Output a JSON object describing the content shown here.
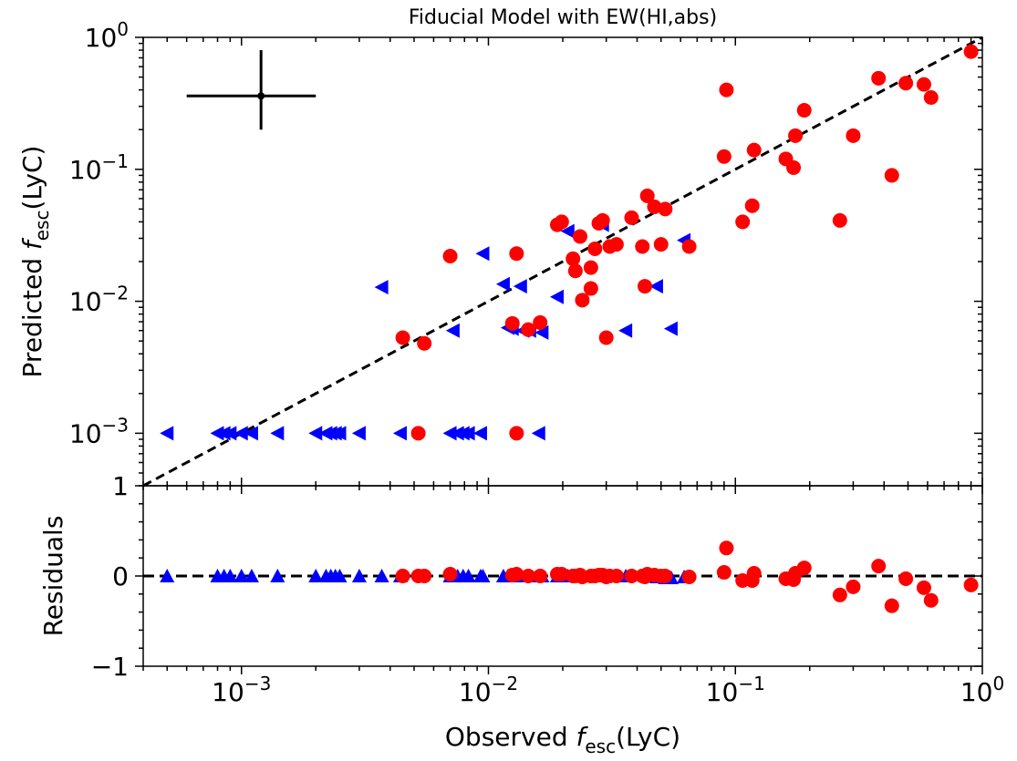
{
  "chart_data": [
    {
      "type": "scatter",
      "title": "Fiducial Model with EW(HI,abs)",
      "ylabel_prefix": "Predicted ",
      "ylabel_italic": "f",
      "ylabel_sub": "esc",
      "ylabel_suffix": "(LyC)",
      "x_scale": "log",
      "y_scale": "log",
      "xlim": [
        0.0004,
        1.0
      ],
      "ylim": [
        0.0004,
        1.0
      ],
      "x_tick_values": [
        0.001,
        0.01,
        0.1,
        1
      ],
      "y_ticks": [
        {
          "value": 0.001,
          "base": "10",
          "exp": "−3"
        },
        {
          "value": 0.01,
          "base": "10",
          "exp": "−2"
        },
        {
          "value": 0.1,
          "base": "10",
          "exp": "−1"
        },
        {
          "value": 1,
          "base": "10",
          "exp": "0"
        }
      ],
      "one_to_one_line": true,
      "typical_error_bar": {
        "x": 0.0012,
        "y": 0.36,
        "x_low": 0.0006,
        "x_high": 0.002,
        "y_low": 0.2,
        "y_high": 0.8
      },
      "detections": {
        "color": "#ff0000",
        "marker": "circle",
        "points": [
          [
            0.0045,
            0.0053
          ],
          [
            0.0055,
            0.0048
          ],
          [
            0.007,
            0.022
          ],
          [
            0.013,
            0.023
          ],
          [
            0.0052,
            0.001
          ],
          [
            0.013,
            0.001
          ],
          [
            0.0125,
            0.0068
          ],
          [
            0.0145,
            0.0061
          ],
          [
            0.0162,
            0.0069
          ],
          [
            0.019,
            0.038
          ],
          [
            0.0198,
            0.04
          ],
          [
            0.022,
            0.021
          ],
          [
            0.0225,
            0.017
          ],
          [
            0.0235,
            0.031
          ],
          [
            0.024,
            0.0102
          ],
          [
            0.026,
            0.018
          ],
          [
            0.026,
            0.0125
          ],
          [
            0.027,
            0.025
          ],
          [
            0.028,
            0.039
          ],
          [
            0.029,
            0.041
          ],
          [
            0.03,
            0.0053
          ],
          [
            0.031,
            0.026
          ],
          [
            0.033,
            0.027
          ],
          [
            0.038,
            0.043
          ],
          [
            0.042,
            0.026
          ],
          [
            0.044,
            0.063
          ],
          [
            0.047,
            0.052
          ],
          [
            0.05,
            0.027
          ],
          [
            0.052,
            0.05
          ],
          [
            0.043,
            0.013
          ],
          [
            0.065,
            0.026
          ],
          [
            0.09,
            0.125
          ],
          [
            0.092,
            0.4
          ],
          [
            0.107,
            0.04
          ],
          [
            0.117,
            0.053
          ],
          [
            0.119,
            0.14
          ],
          [
            0.16,
            0.12
          ],
          [
            0.172,
            0.103
          ],
          [
            0.175,
            0.18
          ],
          [
            0.19,
            0.28
          ],
          [
            0.265,
            0.041
          ],
          [
            0.3,
            0.18
          ],
          [
            0.38,
            0.49
          ],
          [
            0.43,
            0.09
          ],
          [
            0.49,
            0.45
          ],
          [
            0.58,
            0.44
          ],
          [
            0.62,
            0.35
          ],
          [
            0.9,
            0.78
          ]
        ]
      },
      "upper_limits": {
        "color": "#0000ff",
        "marker": "triangle-left",
        "points": [
          [
            0.0005,
            0.001
          ],
          [
            0.0008,
            0.001
          ],
          [
            0.00085,
            0.001
          ],
          [
            0.0009,
            0.001
          ],
          [
            0.001,
            0.001
          ],
          [
            0.0011,
            0.001
          ],
          [
            0.0014,
            0.001
          ],
          [
            0.002,
            0.001
          ],
          [
            0.0022,
            0.001
          ],
          [
            0.0023,
            0.001
          ],
          [
            0.0024,
            0.001
          ],
          [
            0.0025,
            0.001
          ],
          [
            0.003,
            0.001
          ],
          [
            0.0044,
            0.001
          ],
          [
            0.007,
            0.001
          ],
          [
            0.0075,
            0.001
          ],
          [
            0.0079,
            0.001
          ],
          [
            0.0083,
            0.001
          ],
          [
            0.0093,
            0.001
          ],
          [
            0.016,
            0.001
          ],
          [
            0.0037,
            0.0128
          ],
          [
            0.0072,
            0.006
          ],
          [
            0.0095,
            0.023
          ],
          [
            0.0115,
            0.0135
          ],
          [
            0.012,
            0.0063
          ],
          [
            0.0125,
            0.0062
          ],
          [
            0.0135,
            0.013
          ],
          [
            0.0138,
            0.006
          ],
          [
            0.0147,
            0.006
          ],
          [
            0.0165,
            0.0058
          ],
          [
            0.019,
            0.0108
          ],
          [
            0.021,
            0.034
          ],
          [
            0.029,
            0.038
          ],
          [
            0.036,
            0.006
          ],
          [
            0.048,
            0.013
          ],
          [
            0.055,
            0.0062
          ],
          [
            0.062,
            0.029
          ]
        ]
      }
    },
    {
      "type": "scatter",
      "ylabel": "Residuals",
      "xlabel_prefix": "Observed ",
      "xlabel_italic": "f",
      "xlabel_sub": "esc",
      "xlabel_suffix": "(LyC)",
      "x_scale": "log",
      "xlim": [
        0.0004,
        1.0
      ],
      "ylim": [
        -1,
        1
      ],
      "x_ticks": [
        {
          "value": 0.001,
          "base": "10",
          "exp": "−3"
        },
        {
          "value": 0.01,
          "base": "10",
          "exp": "−2"
        },
        {
          "value": 0.1,
          "base": "10",
          "exp": "−1"
        },
        {
          "value": 1,
          "base": "10",
          "exp": "0"
        }
      ],
      "y_ticks": [
        {
          "value": -1,
          "label": "−1"
        },
        {
          "value": 0,
          "label": "0"
        },
        {
          "value": 1,
          "label": "1"
        }
      ],
      "zero_line": true,
      "detections": {
        "color": "#ff0000",
        "marker": "circle",
        "points": [
          [
            0.0045,
            0.0
          ],
          [
            0.0052,
            0.0
          ],
          [
            0.0055,
            0.0
          ],
          [
            0.007,
            0.02
          ],
          [
            0.0125,
            0.01
          ],
          [
            0.013,
            0.02
          ],
          [
            0.0145,
            0.0
          ],
          [
            0.0162,
            0.0
          ],
          [
            0.019,
            0.02
          ],
          [
            0.0198,
            0.02
          ],
          [
            0.022,
            0.0
          ],
          [
            0.0225,
            0.0
          ],
          [
            0.0235,
            0.01
          ],
          [
            0.024,
            -0.01
          ],
          [
            0.026,
            0.0
          ],
          [
            0.027,
            0.0
          ],
          [
            0.028,
            0.01
          ],
          [
            0.029,
            0.01
          ],
          [
            0.03,
            -0.01
          ],
          [
            0.031,
            0.0
          ],
          [
            0.033,
            0.0
          ],
          [
            0.038,
            0.0
          ],
          [
            0.042,
            0.0
          ],
          [
            0.043,
            -0.01
          ],
          [
            0.044,
            0.02
          ],
          [
            0.047,
            0.01
          ],
          [
            0.05,
            0.0
          ],
          [
            0.052,
            0.0
          ],
          [
            0.065,
            -0.01
          ],
          [
            0.09,
            0.04
          ],
          [
            0.092,
            0.31
          ],
          [
            0.107,
            -0.05
          ],
          [
            0.117,
            -0.05
          ],
          [
            0.119,
            0.03
          ],
          [
            0.16,
            -0.03
          ],
          [
            0.172,
            -0.04
          ],
          [
            0.175,
            0.03
          ],
          [
            0.19,
            0.09
          ],
          [
            0.265,
            -0.21
          ],
          [
            0.3,
            -0.12
          ],
          [
            0.38,
            0.11
          ],
          [
            0.43,
            -0.33
          ],
          [
            0.49,
            -0.03
          ],
          [
            0.58,
            -0.13
          ],
          [
            0.62,
            -0.27
          ],
          [
            0.9,
            -0.1
          ]
        ]
      },
      "upper_limits": {
        "color": "#0000ff",
        "marker": "triangle-up",
        "points": [
          [
            0.0005,
            0.0
          ],
          [
            0.0008,
            0.0
          ],
          [
            0.00085,
            0.0
          ],
          [
            0.0009,
            0.0
          ],
          [
            0.001,
            0.0
          ],
          [
            0.0011,
            0.0
          ],
          [
            0.0014,
            0.0
          ],
          [
            0.002,
            0.0
          ],
          [
            0.0022,
            0.0
          ],
          [
            0.0023,
            0.0
          ],
          [
            0.0024,
            0.0
          ],
          [
            0.0025,
            0.0
          ],
          [
            0.003,
            0.0
          ],
          [
            0.0037,
            0.0
          ],
          [
            0.0044,
            0.0
          ],
          [
            0.007,
            0.0
          ],
          [
            0.0072,
            0.0
          ],
          [
            0.0075,
            0.0
          ],
          [
            0.0079,
            0.0
          ],
          [
            0.0083,
            0.0
          ],
          [
            0.0093,
            0.0
          ],
          [
            0.0095,
            0.0
          ],
          [
            0.0115,
            0.0
          ],
          [
            0.012,
            0.0
          ],
          [
            0.0135,
            0.0
          ],
          [
            0.0147,
            0.0
          ],
          [
            0.016,
            0.0
          ],
          [
            0.0165,
            0.0
          ],
          [
            0.019,
            0.0
          ],
          [
            0.021,
            0.0
          ],
          [
            0.029,
            0.0
          ],
          [
            0.036,
            0.0
          ],
          [
            0.048,
            -0.01
          ],
          [
            0.052,
            -0.02
          ],
          [
            0.055,
            -0.02
          ],
          [
            0.062,
            -0.01
          ]
        ]
      }
    }
  ]
}
